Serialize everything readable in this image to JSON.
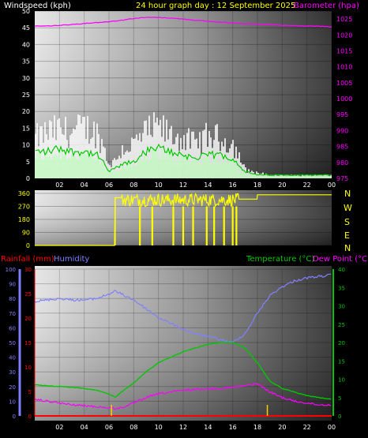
{
  "header": {
    "wind_title": "Windspeed (kph)",
    "graph_title": "24 hour graph day : 12 September 2025",
    "baro_title": "Barometer (hpa)"
  },
  "bottom_header": {
    "rain_title": "Rainfall (mm)",
    "humidity_title": "Humidity",
    "temp_title": "Temperature (°C)",
    "dew_title": "Dew Point (°C)"
  },
  "compass": [
    "N",
    "W",
    "S",
    "E",
    "N"
  ],
  "colors": {
    "wind_gust": "#ffffff",
    "wind_avg": "#c8ffc8",
    "wind_avg_line": "#00c800",
    "barometer": "#ff00ff",
    "direction": "#ffff00",
    "temperature": "#00c800",
    "dew_point": "#ff00ff",
    "humidity": "#8080ff",
    "rainfall": "#ff0000",
    "title_yellow": "#ffff00"
  },
  "chart_data": [
    {
      "type": "area",
      "name": "wind_barometer",
      "title": "24 hour graph day : 12 September 2025",
      "xlabel": "",
      "x_ticks": [
        "02",
        "04",
        "06",
        "08",
        "10",
        "12",
        "14",
        "16",
        "18",
        "20",
        "22",
        "00"
      ],
      "y_left_label": "Windspeed (kph)",
      "y_left_ticks": [
        0,
        5,
        10,
        15,
        20,
        25,
        30,
        35,
        40,
        45,
        50
      ],
      "ylim_left": [
        0,
        50
      ],
      "y_right_label": "Barometer (hpa)",
      "y_right_ticks": [
        975,
        980,
        985,
        990,
        995,
        1000,
        1005,
        1010,
        1015,
        1020,
        1025
      ],
      "ylim_right": [
        975,
        1027.5
      ],
      "x": [
        0,
        1,
        2,
        3,
        4,
        5,
        5.5,
        6,
        6.5,
        7,
        8,
        9,
        10,
        11,
        12,
        13,
        14,
        15,
        16,
        16.5,
        17,
        18,
        19,
        20,
        21,
        22,
        23,
        24
      ],
      "series": [
        {
          "name": "Windspeed gust",
          "axis": "left",
          "values": [
            14,
            16,
            17,
            16,
            18,
            16,
            12,
            5,
            6,
            10,
            12,
            16,
            18,
            15,
            14,
            12,
            15,
            14,
            12,
            8,
            3,
            2,
            1,
            1,
            1,
            1,
            1,
            1
          ]
        },
        {
          "name": "Windspeed average",
          "axis": "left",
          "values": [
            8,
            8,
            9,
            8,
            8,
            7,
            5,
            2,
            3,
            4,
            5,
            8,
            9,
            8,
            7,
            6,
            7,
            7,
            6,
            4,
            2,
            1,
            1,
            1,
            1,
            1,
            1,
            1
          ]
        },
        {
          "name": "Barometer",
          "axis": "right",
          "values": [
            1022.8,
            1022.8,
            1023.0,
            1023.3,
            1023.6,
            1023.9,
            1024.0,
            1024.2,
            1024.4,
            1024.6,
            1025.2,
            1025.5,
            1025.5,
            1025.3,
            1025.0,
            1024.6,
            1024.3,
            1024.0,
            1023.8,
            1023.7,
            1023.5,
            1023.4,
            1023.2,
            1023.0,
            1022.9,
            1022.8,
            1022.7,
            1022.5
          ]
        }
      ]
    },
    {
      "type": "scatter",
      "name": "wind_direction",
      "x_ticks": [],
      "y_ticks": [
        0,
        90,
        180,
        270,
        360
      ],
      "ylim": [
        0,
        360
      ],
      "segments": [
        {
          "from": 0,
          "to": 6.5,
          "value": 0
        },
        {
          "from": 6.5,
          "to": 7.0,
          "value": 330
        },
        {
          "from": 7.0,
          "to": 16.5,
          "value_band": [
            270,
            360
          ],
          "dips": [
            8.5,
            9.5,
            11.2,
            12.0,
            12.8,
            13.9,
            14.5,
            15.3,
            16.0,
            16.3
          ]
        },
        {
          "from": 16.5,
          "to": 18.0,
          "value": 320
        },
        {
          "from": 18.0,
          "to": 24,
          "value": 350
        }
      ]
    },
    {
      "type": "line",
      "name": "temp_humidity_rain",
      "x_ticks": [
        "02",
        "04",
        "06",
        "08",
        "10",
        "12",
        "14",
        "16",
        "18",
        "20",
        "22",
        "00"
      ],
      "y_humidity_ticks": [
        0,
        10,
        20,
        30,
        40,
        50,
        60,
        70,
        80,
        90,
        100
      ],
      "ylim_humidity": [
        0,
        100
      ],
      "y_rain_ticks": [
        0,
        5,
        10,
        15,
        20,
        25,
        30
      ],
      "ylim_rain": [
        0,
        30
      ],
      "y_temp_ticks": [
        0,
        5,
        10,
        15,
        20,
        25,
        30,
        35,
        40
      ],
      "ylim_temp": [
        0,
        40
      ],
      "x": [
        0,
        1,
        2,
        3,
        4,
        5,
        6,
        6.5,
        7,
        8,
        9,
        10,
        11,
        12,
        13,
        14,
        15,
        16,
        17,
        18,
        19,
        20,
        21,
        22,
        23,
        24
      ],
      "series": [
        {
          "name": "Humidity",
          "axis": "humidity",
          "values": [
            78,
            79,
            80,
            79,
            79,
            80,
            83,
            85,
            83,
            79,
            73,
            67,
            63,
            59,
            56,
            54,
            52,
            50,
            56,
            70,
            82,
            88,
            92,
            94,
            95,
            96
          ]
        },
        {
          "name": "Temperature",
          "axis": "temp",
          "values": [
            8.5,
            8.2,
            8.0,
            7.8,
            7.5,
            7.0,
            6.0,
            5.0,
            6.5,
            9.0,
            12,
            14.5,
            16,
            17.5,
            18.5,
            19.5,
            20,
            20,
            18.5,
            14.5,
            9.5,
            7.5,
            6.5,
            5.5,
            5.0,
            4.5
          ]
        },
        {
          "name": "Dew Point",
          "axis": "temp",
          "values": [
            4.5,
            4.0,
            3.5,
            3.0,
            2.8,
            2.5,
            2.2,
            2.0,
            2.2,
            3.5,
            5.0,
            6.0,
            6.5,
            7.0,
            7.2,
            7.4,
            7.5,
            7.8,
            8.2,
            8.8,
            6.5,
            5.0,
            4.0,
            3.5,
            3.0,
            3.0
          ]
        },
        {
          "name": "Rainfall",
          "axis": "rain",
          "values": [
            0,
            0,
            0,
            0,
            0,
            0,
            0,
            0,
            0,
            0,
            0,
            0,
            0,
            0,
            0,
            0,
            0,
            0,
            0,
            0,
            0,
            0,
            0,
            0,
            0,
            0
          ]
        }
      ],
      "markers": [
        6.2,
        18.8
      ]
    }
  ]
}
